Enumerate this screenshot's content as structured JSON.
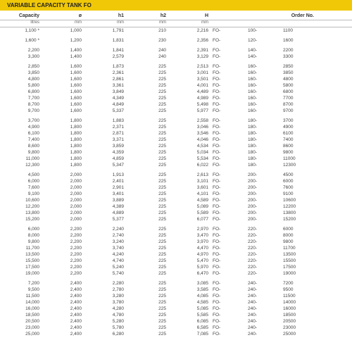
{
  "title": "VARIABLE CAPACITY TANK FO",
  "columns": [
    "Capacity",
    "ø",
    "h1",
    "h2",
    "H",
    "Order No."
  ],
  "units": [
    "litres",
    "mm",
    "mm",
    "mm",
    "mm",
    ""
  ],
  "groups": [
    [
      {
        "cap": "1,100 *",
        "d": "1,000",
        "h1": "1,791",
        "h2": "210",
        "H": "2,216",
        "o": [
          "FO-",
          "100-",
          "1100"
        ]
      }
    ],
    [
      {
        "cap": "1,600 *",
        "d": "1,200",
        "h1": "1,831",
        "h2": "230",
        "H": "2,356",
        "o": [
          "FO-",
          "120-",
          "1600"
        ]
      }
    ],
    [
      {
        "cap": "2,200",
        "d": "1,400",
        "h1": "1,841",
        "h2": "240",
        "H": "2,391",
        "o": [
          "FO-",
          "140-",
          "2200"
        ]
      },
      {
        "cap": "3,300",
        "d": "1,400",
        "h1": "2,579",
        "h2": "240",
        "H": "3,129",
        "o": [
          "FO-",
          "140-",
          "3300"
        ]
      }
    ],
    [
      {
        "cap": "2,850",
        "d": "1,600",
        "h1": "1,873",
        "h2": "225",
        "H": "2,513",
        "o": [
          "FO-",
          "160-",
          "2850"
        ]
      },
      {
        "cap": "3,850",
        "d": "1,600",
        "h1": "2,361",
        "h2": "225",
        "H": "3,001",
        "o": [
          "FO-",
          "160-",
          "3850"
        ]
      },
      {
        "cap": "4,800",
        "d": "1,600",
        "h1": "2,861",
        "h2": "225",
        "H": "3,501",
        "o": [
          "FO-",
          "160-",
          "4800"
        ]
      },
      {
        "cap": "5,800",
        "d": "1,600",
        "h1": "3,361",
        "h2": "225",
        "H": "4,001",
        "o": [
          "FO-",
          "160-",
          "5800"
        ]
      },
      {
        "cap": "6,800",
        "d": "1,600",
        "h1": "3,849",
        "h2": "225",
        "H": "4,489",
        "o": [
          "FO-",
          "160-",
          "6800"
        ]
      },
      {
        "cap": "7,700",
        "d": "1,600",
        "h1": "4,349",
        "h2": "225",
        "H": "4,989",
        "o": [
          "FO-",
          "160-",
          "7700"
        ]
      },
      {
        "cap": "8,700",
        "d": "1,600",
        "h1": "4,849",
        "h2": "225",
        "H": "5,498",
        "o": [
          "FO-",
          "160-",
          "8700"
        ]
      },
      {
        "cap": "9,700",
        "d": "1,600",
        "h1": "5,337",
        "h2": "225",
        "H": "5,977",
        "o": [
          "FO-",
          "160-",
          "9700"
        ]
      }
    ],
    [
      {
        "cap": "3,700",
        "d": "1,800",
        "h1": "1,883",
        "h2": "225",
        "H": "2,558",
        "o": [
          "FO-",
          "180-",
          "3700"
        ]
      },
      {
        "cap": "4,900",
        "d": "1,800",
        "h1": "2,371",
        "h2": "225",
        "H": "3,046",
        "o": [
          "FO-",
          "180-",
          "4900"
        ]
      },
      {
        "cap": "6,100",
        "d": "1,800",
        "h1": "2,871",
        "h2": "225",
        "H": "3,546",
        "o": [
          "FO-",
          "180-",
          "6100"
        ]
      },
      {
        "cap": "7,400",
        "d": "1,800",
        "h1": "3,371",
        "h2": "225",
        "H": "4,046",
        "o": [
          "FO-",
          "180-",
          "7400"
        ]
      },
      {
        "cap": "8,600",
        "d": "1,800",
        "h1": "3,859",
        "h2": "225",
        "H": "4,534",
        "o": [
          "FO-",
          "180-",
          "8600"
        ]
      },
      {
        "cap": "9,800",
        "d": "1,800",
        "h1": "4,359",
        "h2": "225",
        "H": "5,034",
        "o": [
          "FO-",
          "180-",
          "9800"
        ]
      },
      {
        "cap": "11,000",
        "d": "1,800",
        "h1": "4,859",
        "h2": "225",
        "H": "5,534",
        "o": [
          "FO-",
          "180-",
          "11000"
        ]
      },
      {
        "cap": "12,300",
        "d": "1,800",
        "h1": "5,347",
        "h2": "225",
        "H": "6,022",
        "o": [
          "FO-",
          "180-",
          "12300"
        ]
      }
    ],
    [
      {
        "cap": "4,500",
        "d": "2,000",
        "h1": "1,913",
        "h2": "225",
        "H": "2,613",
        "o": [
          "FO-",
          "200-",
          "4500"
        ]
      },
      {
        "cap": "6,000",
        "d": "2,000",
        "h1": "2,401",
        "h2": "225",
        "H": "3,101",
        "o": [
          "FO-",
          "200-",
          "6000"
        ]
      },
      {
        "cap": "7,600",
        "d": "2,000",
        "h1": "2,901",
        "h2": "225",
        "H": "3,601",
        "o": [
          "FO-",
          "200-",
          "7600"
        ]
      },
      {
        "cap": "9,100",
        "d": "2,000",
        "h1": "3,401",
        "h2": "225",
        "H": "4,101",
        "o": [
          "FO-",
          "200-",
          "9100"
        ]
      },
      {
        "cap": "10,600",
        "d": "2,000",
        "h1": "3,889",
        "h2": "225",
        "H": "4,589",
        "o": [
          "FO-",
          "200-",
          "10600"
        ]
      },
      {
        "cap": "12,200",
        "d": "2,000",
        "h1": "4,389",
        "h2": "225",
        "H": "5,089",
        "o": [
          "FO-",
          "200-",
          "12200"
        ]
      },
      {
        "cap": "13,800",
        "d": "2,000",
        "h1": "4,889",
        "h2": "225",
        "H": "5,589",
        "o": [
          "FO-",
          "200-",
          "13800"
        ]
      },
      {
        "cap": "15,200",
        "d": "2,000",
        "h1": "5,377",
        "h2": "225",
        "H": "6,077",
        "o": [
          "FO-",
          "200-",
          "15200"
        ]
      }
    ],
    [
      {
        "cap": "6,000",
        "d": "2,200",
        "h1": "2,240",
        "h2": "225",
        "H": "2,970",
        "o": [
          "FO-",
          "220-",
          "6000"
        ]
      },
      {
        "cap": "8,000",
        "d": "2,200",
        "h1": "2,740",
        "h2": "225",
        "H": "3,470",
        "o": [
          "FO-",
          "220-",
          "8000"
        ]
      },
      {
        "cap": "9,800",
        "d": "2,200",
        "h1": "3,240",
        "h2": "225",
        "H": "3,970",
        "o": [
          "FO-",
          "220-",
          "9800"
        ]
      },
      {
        "cap": "11,700",
        "d": "2,200",
        "h1": "3,740",
        "h2": "225",
        "H": "4,470",
        "o": [
          "FO-",
          "220-",
          "11700"
        ]
      },
      {
        "cap": "13,500",
        "d": "2,200",
        "h1": "4,240",
        "h2": "225",
        "H": "4,970",
        "o": [
          "FO-",
          "220-",
          "13500"
        ]
      },
      {
        "cap": "15,500",
        "d": "2,200",
        "h1": "4,740",
        "h2": "225",
        "H": "5,470",
        "o": [
          "FO-",
          "220-",
          "15500"
        ]
      },
      {
        "cap": "17,500",
        "d": "2,200",
        "h1": "5,240",
        "h2": "225",
        "H": "5,970",
        "o": [
          "FO-",
          "220-",
          "17500"
        ]
      },
      {
        "cap": "19,000",
        "d": "2,200",
        "h1": "5,740",
        "h2": "225",
        "H": "6,470",
        "o": [
          "FO-",
          "220-",
          "19000"
        ]
      }
    ],
    [
      {
        "cap": "7,200",
        "d": "2,400",
        "h1": "2,280",
        "h2": "225",
        "H": "3,085",
        "o": [
          "FO-",
          "240-",
          "7200"
        ]
      },
      {
        "cap": "9,500",
        "d": "2,400",
        "h1": "2,780",
        "h2": "225",
        "H": "3,585",
        "o": [
          "FO-",
          "240-",
          "9500"
        ]
      },
      {
        "cap": "11,500",
        "d": "2,400",
        "h1": "3,280",
        "h2": "225",
        "H": "4,085",
        "o": [
          "FO-",
          "240-",
          "11500"
        ]
      },
      {
        "cap": "14,000",
        "d": "2,400",
        "h1": "3,780",
        "h2": "225",
        "H": "4,585",
        "o": [
          "FO-",
          "240-",
          "14000"
        ]
      },
      {
        "cap": "16,000",
        "d": "2,400",
        "h1": "4,280",
        "h2": "225",
        "H": "5,085",
        "o": [
          "FO-",
          "240-",
          "16000"
        ]
      },
      {
        "cap": "18,500",
        "d": "2,400",
        "h1": "4,780",
        "h2": "225",
        "H": "5,585",
        "o": [
          "FO-",
          "240-",
          "18500"
        ]
      },
      {
        "cap": "20,500",
        "d": "2,400",
        "h1": "5,280",
        "h2": "225",
        "H": "6,085",
        "o": [
          "FO-",
          "240-",
          "20500"
        ]
      },
      {
        "cap": "23,000",
        "d": "2,400",
        "h1": "5,780",
        "h2": "225",
        "H": "6,585",
        "o": [
          "FO-",
          "240-",
          "23000"
        ]
      },
      {
        "cap": "25,000",
        "d": "2,400",
        "h1": "6,280",
        "h2": "225",
        "H": "7,085",
        "o": [
          "FO-",
          "240-",
          "25000"
        ]
      }
    ]
  ]
}
